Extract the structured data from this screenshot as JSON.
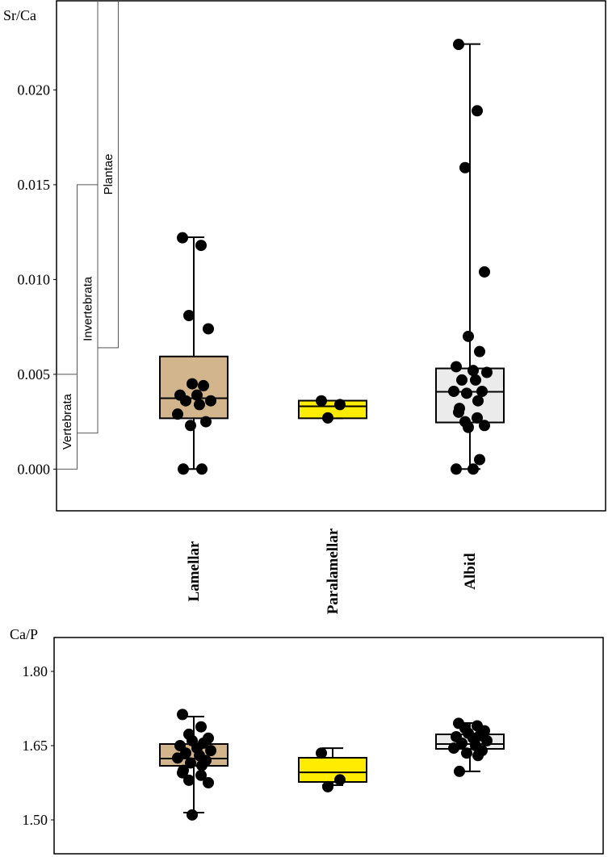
{
  "chart_data": [
    {
      "type": "box",
      "ylabel": "Sr/Ca",
      "categories": [
        "Lamellar",
        "Paralamellar",
        "Albid"
      ],
      "ylim": [
        -0.0022,
        0.0247
      ],
      "yticks": [
        {
          "value": 0,
          "label": "0.000"
        },
        {
          "value": 0.005,
          "label": "0.005"
        },
        {
          "value": 0.01,
          "label": "0.010"
        },
        {
          "value": 0.015,
          "label": "0.015"
        },
        {
          "value": 0.02,
          "label": "0.020"
        }
      ],
      "ranges": [
        {
          "label": "Vertebrata",
          "low": 0,
          "high": 0.005
        },
        {
          "label": "Invertebrata",
          "low": 0.0019,
          "high": 0.015
        },
        {
          "label": "Plantae",
          "low": 0.0064,
          "high": 0.025
        }
      ],
      "boxes": [
        {
          "color": "#d3b58d",
          "whislo": 0,
          "q1": 0.00268,
          "median": 0.00374,
          "q3": 0.00594,
          "whishi": 0.01223,
          "points": [
            0.0122,
            0.0118,
            0.0081,
            0.0074,
            0.0045,
            0.0044,
            0.0039,
            0.0039,
            0.0036,
            0.0036,
            0.0034,
            0.0029,
            0.0025,
            0.0023,
            0,
            0
          ]
        },
        {
          "color": "#ffec00",
          "whislo": 0.00268,
          "q1": 0.00268,
          "median": 0.00331,
          "q3": 0.00361,
          "whishi": 0.00361,
          "points": [
            0.0036,
            0.0034,
            0.0027
          ]
        },
        {
          "color": "#ebebeb",
          "whislo": 0,
          "q1": 0.00246,
          "median": 0.00408,
          "q3": 0.00531,
          "whishi": 0.02242,
          "points": [
            0.0224,
            0.0189,
            0.0159,
            0.0104,
            0.007,
            0.0062,
            0.0054,
            0.0052,
            0.0051,
            0.0047,
            0.0047,
            0.0041,
            0.0041,
            0.004,
            0.0036,
            0.0032,
            0.003,
            0.0027,
            0.0025,
            0.0023,
            0.0022,
            0.0005,
            0,
            0
          ]
        }
      ]
    },
    {
      "type": "box",
      "ylabel": "Ca/P",
      "ylim": [
        1.4315,
        1.8685
      ],
      "yticks": [
        {
          "value": 1.5,
          "label": "1.50"
        },
        1.65,
        {
          "value": 1.8,
          "label": "1.80"
        }
      ],
      "boxes": [
        {
          "color": "#d3b58d",
          "whislo": 1.5147,
          "q1": 1.6092,
          "median": 1.6239,
          "q3": 1.6533,
          "whishi": 1.7087,
          "points": [
            1.713,
            1.688,
            1.673,
            1.665,
            1.66,
            1.655,
            1.65,
            1.645,
            1.64,
            1.635,
            1.63,
            1.625,
            1.62,
            1.615,
            1.61,
            1.6,
            1.595,
            1.59,
            1.58,
            1.575,
            1.51
          ]
        },
        {
          "color": "#ffec00",
          "whislo": 1.57,
          "q1": 1.5766,
          "median": 1.596,
          "q3": 1.6255,
          "whishi": 1.645,
          "points": [
            1.635,
            1.581,
            1.567
          ]
        },
        {
          "color": "#ebebeb",
          "whislo": 1.598,
          "q1": 1.6435,
          "median": 1.6533,
          "q3": 1.6728,
          "whishi": 1.6957,
          "points": [
            1.695,
            1.69,
            1.685,
            1.68,
            1.675,
            1.67,
            1.668,
            1.665,
            1.66,
            1.655,
            1.65,
            1.645,
            1.64,
            1.635,
            1.63,
            1.598
          ]
        }
      ]
    }
  ]
}
